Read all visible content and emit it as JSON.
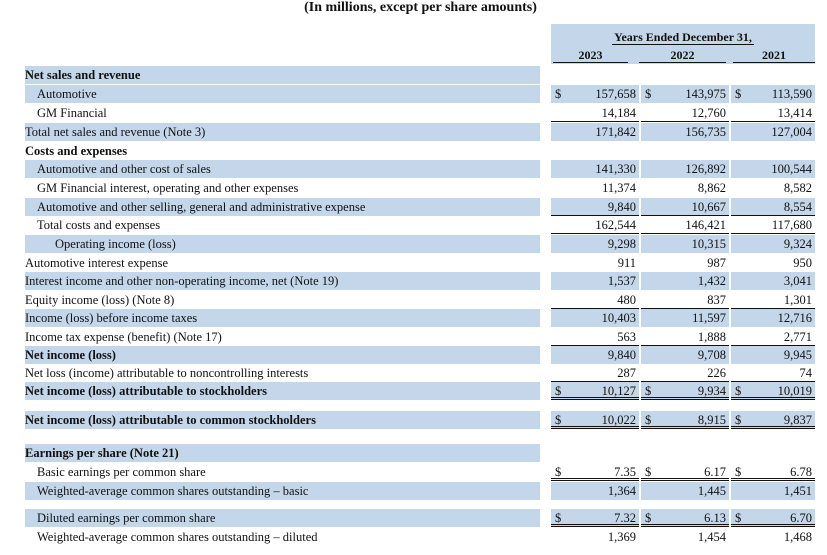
{
  "title": "(In millions, except per share amounts)",
  "header": {
    "period": "Years Ended December 31,",
    "years": [
      "2023",
      "2022",
      "2021"
    ]
  },
  "currency_symbol": "$",
  "rows": [
    {
      "label": "Net sales and revenue",
      "indent": 0,
      "bold": true,
      "shaded": true,
      "values": []
    },
    {
      "label": "Automotive",
      "indent": 12,
      "shaded": true,
      "cur": true,
      "values": [
        "157,658",
        "143,975",
        "113,590"
      ]
    },
    {
      "label": "GM Financial",
      "indent": 12,
      "shaded": false,
      "values": [
        "14,184",
        "12,760",
        "13,414"
      ],
      "underline": true
    },
    {
      "label": "Total net sales and revenue (Note 3)",
      "indent": 0,
      "shaded": true,
      "values": [
        "171,842",
        "156,735",
        "127,004"
      ]
    },
    {
      "label": "Costs and expenses",
      "indent": 0,
      "bold": true,
      "shaded": false,
      "values": []
    },
    {
      "label": "Automotive and other cost of sales",
      "indent": 12,
      "shaded": true,
      "values": [
        "141,330",
        "126,892",
        "100,544"
      ]
    },
    {
      "label": "GM Financial interest, operating and other expenses",
      "indent": 12,
      "shaded": false,
      "values": [
        "11,374",
        "8,862",
        "8,582"
      ]
    },
    {
      "label": "Automotive and other selling, general and administrative expense",
      "indent": 12,
      "shaded": true,
      "values": [
        "9,840",
        "10,667",
        "8,554"
      ],
      "underline": true
    },
    {
      "label": "Total costs and expenses",
      "indent": 12,
      "shaded": false,
      "values": [
        "162,544",
        "146,421",
        "117,680"
      ],
      "underline": true
    },
    {
      "label": "Operating income (loss)",
      "indent": 30,
      "shaded": true,
      "values": [
        "9,298",
        "10,315",
        "9,324"
      ]
    },
    {
      "label": "Automotive interest expense",
      "indent": 0,
      "shaded": false,
      "values": [
        "911",
        "987",
        "950"
      ]
    },
    {
      "label": "Interest income and other non-operating income, net (Note 19)",
      "indent": 0,
      "shaded": true,
      "values": [
        "1,537",
        "1,432",
        "3,041"
      ]
    },
    {
      "label": "Equity income (loss) (Note 8)",
      "indent": 0,
      "shaded": false,
      "values": [
        "480",
        "837",
        "1,301"
      ],
      "underline": true
    },
    {
      "label": "Income (loss) before income taxes",
      "indent": 0,
      "shaded": true,
      "values": [
        "10,403",
        "11,597",
        "12,716"
      ]
    },
    {
      "label": "Income tax expense (benefit) (Note 17)",
      "indent": 0,
      "shaded": false,
      "values": [
        "563",
        "1,888",
        "2,771"
      ],
      "underline": true
    },
    {
      "label": "Net income (loss)",
      "indent": 0,
      "bold": true,
      "shaded": true,
      "values": [
        "9,840",
        "9,708",
        "9,945"
      ]
    },
    {
      "label": "Net loss (income) attributable to noncontrolling interests",
      "indent": 0,
      "shaded": false,
      "values": [
        "287",
        "226",
        "74"
      ],
      "underline": true
    },
    {
      "label": "Net income (loss) attributable to stockholders",
      "indent": 0,
      "bold": true,
      "shaded": true,
      "cur": true,
      "values": [
        "10,127",
        "9,934",
        "10,019"
      ],
      "double": true
    },
    {
      "label": "Net income (loss) attributable to common stockholders",
      "indent": 0,
      "bold": true,
      "shaded": true,
      "cur": true,
      "values": [
        "10,022",
        "8,915",
        "9,837"
      ],
      "double": true
    },
    {
      "label": "Earnings per share (Note 21)",
      "indent": 0,
      "bold": true,
      "shaded": true,
      "values": []
    },
    {
      "label": "Basic earnings per common share",
      "indent": 12,
      "shaded": false,
      "cur": true,
      "values": [
        "7.35",
        "6.17",
        "6.78"
      ],
      "double": true
    },
    {
      "label": "Weighted-average common shares outstanding – basic",
      "indent": 12,
      "shaded": true,
      "values": [
        "1,364",
        "1,445",
        "1,451"
      ]
    },
    {
      "label": "Diluted earnings per common share",
      "indent": 12,
      "shaded": true,
      "cur": true,
      "values": [
        "7.32",
        "6.13",
        "6.70"
      ],
      "double": true
    },
    {
      "label": "Weighted-average common shares outstanding – diluted",
      "indent": 12,
      "shaded": false,
      "values": [
        "1,369",
        "1,454",
        "1,468"
      ]
    }
  ]
}
